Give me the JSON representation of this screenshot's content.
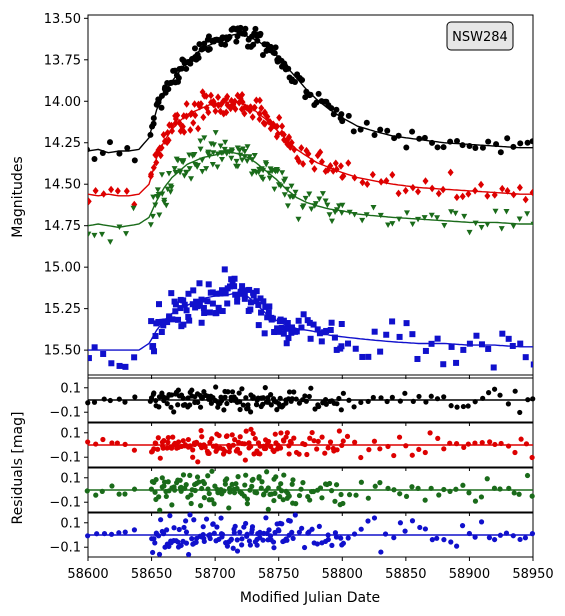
{
  "chart_data": {
    "type": "scatter",
    "legend_placement": "top-right",
    "legend_label": "NSW284",
    "xlabel": "Modified Julian Date",
    "xlim": [
      58600,
      58950
    ],
    "xticks": [
      58600,
      58650,
      58700,
      58750,
      58800,
      58850,
      58900,
      58950
    ],
    "xtick_labels": [
      "58600",
      "58650",
      "58700",
      "58750",
      "58800",
      "58850",
      "58900",
      "58950"
    ],
    "main": {
      "ylabel": "Magnitudes",
      "ylim": [
        13.48,
        15.65
      ],
      "y_inverted": true,
      "yticks": [
        13.5,
        13.75,
        14.0,
        14.25,
        14.5,
        14.75,
        15.0,
        15.25,
        15.5
      ],
      "ytick_labels": [
        "13.50",
        "13.75",
        "14.00",
        "14.25",
        "14.50",
        "14.75",
        "15.00",
        "15.25",
        "15.50"
      ],
      "series": [
        {
          "color": "#000000",
          "marker": "circle",
          "baseline": 14.3,
          "peak": 13.6,
          "scatter": 0.03,
          "x": [
            58600,
            58608,
            58616,
            58624,
            58632,
            58640,
            58648,
            58654,
            58660,
            58666,
            58672,
            58678,
            58684,
            58690,
            58696,
            58702,
            58708,
            58714,
            58720,
            58726,
            58732,
            58740,
            58748,
            58756,
            58764,
            58772,
            58780,
            58790,
            58800,
            58812,
            58825,
            58840,
            58860,
            58880,
            58900,
            58920,
            58940,
            58950
          ],
          "y": [
            14.3,
            14.29,
            14.31,
            14.3,
            14.3,
            14.29,
            14.22,
            14.05,
            13.95,
            13.88,
            13.82,
            13.76,
            13.72,
            13.68,
            13.66,
            13.64,
            13.62,
            13.6,
            13.59,
            13.61,
            13.63,
            13.67,
            13.72,
            13.79,
            13.86,
            13.93,
            13.99,
            14.05,
            14.1,
            14.15,
            14.18,
            14.21,
            14.23,
            14.25,
            14.26,
            14.27,
            14.28,
            14.28
          ]
        },
        {
          "color": "#dd0000",
          "marker": "diamond",
          "baseline": 14.57,
          "peak": 14.0,
          "scatter": 0.04,
          "x": [
            58600,
            58608,
            58616,
            58624,
            58632,
            58640,
            58648,
            58654,
            58660,
            58666,
            58672,
            58678,
            58684,
            58690,
            58696,
            58702,
            58708,
            58714,
            58720,
            58726,
            58732,
            58740,
            58748,
            58756,
            58764,
            58772,
            58780,
            58790,
            58800,
            58812,
            58825,
            58840,
            58860,
            58880,
            58900,
            58920,
            58940,
            58950
          ],
          "y": [
            14.56,
            14.57,
            14.56,
            14.57,
            14.57,
            14.56,
            14.5,
            14.34,
            14.24,
            14.17,
            14.12,
            14.08,
            14.06,
            14.04,
            14.02,
            14.01,
            14.01,
            14.0,
            14.01,
            14.03,
            14.06,
            14.11,
            14.17,
            14.23,
            14.29,
            14.33,
            14.37,
            14.4,
            14.43,
            14.46,
            14.48,
            14.5,
            14.52,
            14.53,
            14.54,
            14.55,
            14.56,
            14.56
          ]
        },
        {
          "color": "#1a6b1a",
          "marker": "triangle-down",
          "baseline": 14.75,
          "peak": 14.31,
          "scatter": 0.05,
          "x": [
            58600,
            58608,
            58616,
            58624,
            58632,
            58640,
            58648,
            58654,
            58660,
            58666,
            58672,
            58678,
            58684,
            58690,
            58696,
            58702,
            58708,
            58714,
            58720,
            58726,
            58732,
            58740,
            58748,
            58756,
            58764,
            58772,
            58780,
            58790,
            58800,
            58812,
            58825,
            58840,
            58860,
            58880,
            58900,
            58920,
            58940,
            58950
          ],
          "y": [
            14.75,
            14.74,
            14.75,
            14.76,
            14.75,
            14.74,
            14.7,
            14.6,
            14.52,
            14.46,
            14.42,
            14.38,
            14.36,
            14.34,
            14.33,
            14.32,
            14.31,
            14.31,
            14.32,
            14.34,
            14.37,
            14.42,
            14.47,
            14.53,
            14.58,
            14.61,
            14.63,
            14.65,
            14.66,
            14.68,
            14.69,
            14.7,
            14.71,
            14.72,
            14.73,
            14.73,
            14.74,
            14.74
          ]
        },
        {
          "color": "#1010cc",
          "marker": "square",
          "baseline": 15.5,
          "peak": 15.16,
          "scatter": 0.06,
          "x": [
            58600,
            58608,
            58616,
            58624,
            58632,
            58640,
            58648,
            58654,
            58660,
            58666,
            58672,
            58678,
            58684,
            58690,
            58696,
            58702,
            58708,
            58714,
            58720,
            58726,
            58732,
            58740,
            58748,
            58756,
            58764,
            58772,
            58780,
            58790,
            58800,
            58812,
            58825,
            58840,
            58860,
            58880,
            58900,
            58920,
            58940,
            58950
          ],
          "y": [
            15.5,
            15.5,
            15.5,
            15.5,
            15.5,
            15.5,
            15.46,
            15.38,
            15.32,
            15.28,
            15.25,
            15.23,
            15.21,
            15.19,
            15.18,
            15.17,
            15.17,
            15.16,
            15.16,
            15.18,
            15.22,
            15.28,
            15.32,
            15.35,
            15.37,
            15.38,
            15.39,
            15.41,
            15.42,
            15.43,
            15.44,
            15.45,
            15.46,
            15.46,
            15.47,
            15.47,
            15.48,
            15.48
          ]
        }
      ]
    },
    "residuals": {
      "ylabel": "Residuals [mag]",
      "ylim": [
        -0.18,
        0.18
      ],
      "yticks": [
        0.1,
        -0.1
      ],
      "ytick_labels": [
        "0.1",
        "−0.1"
      ],
      "panels": [
        {
          "color": "#000000",
          "scatter": 0.04
        },
        {
          "color": "#dd0000",
          "scatter": 0.05
        },
        {
          "color": "#1a6b1a",
          "scatter": 0.06
        },
        {
          "color": "#1010cc",
          "scatter": 0.07
        }
      ]
    }
  }
}
